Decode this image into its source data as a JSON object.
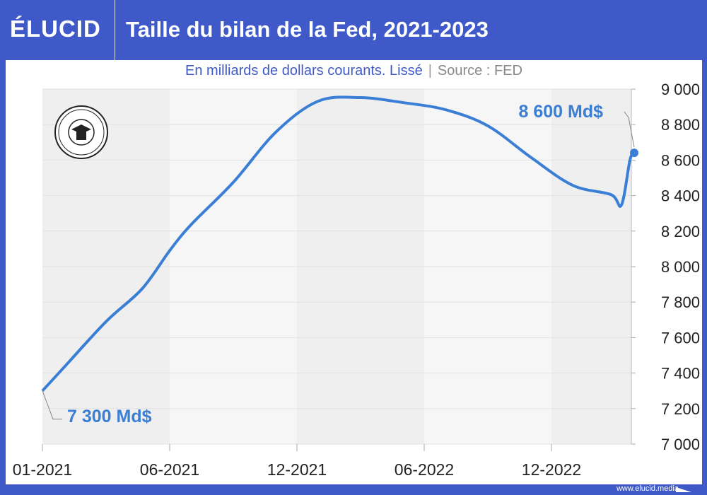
{
  "header": {
    "logo": "ÉLUCID",
    "title": "Taille du bilan de la Fed, 2021-2023"
  },
  "subtitle": {
    "text": "En milliards de dollars courants. Lissé",
    "separator": "|",
    "source": "Source : FED"
  },
  "footer": {
    "url": "www.elucid.media"
  },
  "colors": {
    "brand": "#3f5ac8",
    "line": "#3a7fd5"
  },
  "chart_data": {
    "type": "line",
    "title": "Taille du bilan de la Fed, 2021-2023",
    "xlabel": "",
    "ylabel": "En milliards de dollars courants",
    "ylim": [
      7000,
      9000
    ],
    "xlim_months": [
      0,
      28
    ],
    "yticks": [
      7000,
      7200,
      7400,
      7600,
      7800,
      8000,
      8200,
      8400,
      8600,
      8800,
      9000
    ],
    "ytick_labels": [
      "7 000",
      "7 200",
      "7 400",
      "7 600",
      "7 800",
      "8 000",
      "8 200",
      "8 400",
      "8 600",
      "8 800",
      "9 000"
    ],
    "xticks": [
      0,
      5,
      11,
      17,
      23
    ],
    "xtick_labels": [
      "01-2021",
      "06-2021",
      "12-2021",
      "06-2022",
      "12-2022"
    ],
    "series": [
      {
        "name": "Bilan de la Fed (Md$)",
        "x": [
          0,
          1,
          3,
          4.7,
          6,
          7,
          9,
          11,
          13,
          15,
          17,
          19,
          21,
          23,
          25,
          26.8,
          27.3,
          27.7,
          27.9
        ],
        "values": [
          7300,
          7430,
          7690,
          7875,
          8090,
          8235,
          8475,
          8757,
          8932,
          8952,
          8924,
          8884,
          8793,
          8618,
          8458,
          8406,
          8347,
          8600,
          8641
        ]
      }
    ],
    "annotations": [
      {
        "text": "7 300 Md$",
        "x": 0,
        "y": 7300
      },
      {
        "text": "8 600 Md$",
        "x": 27.9,
        "y": 8641
      }
    ],
    "grid": true,
    "legend": "none"
  }
}
